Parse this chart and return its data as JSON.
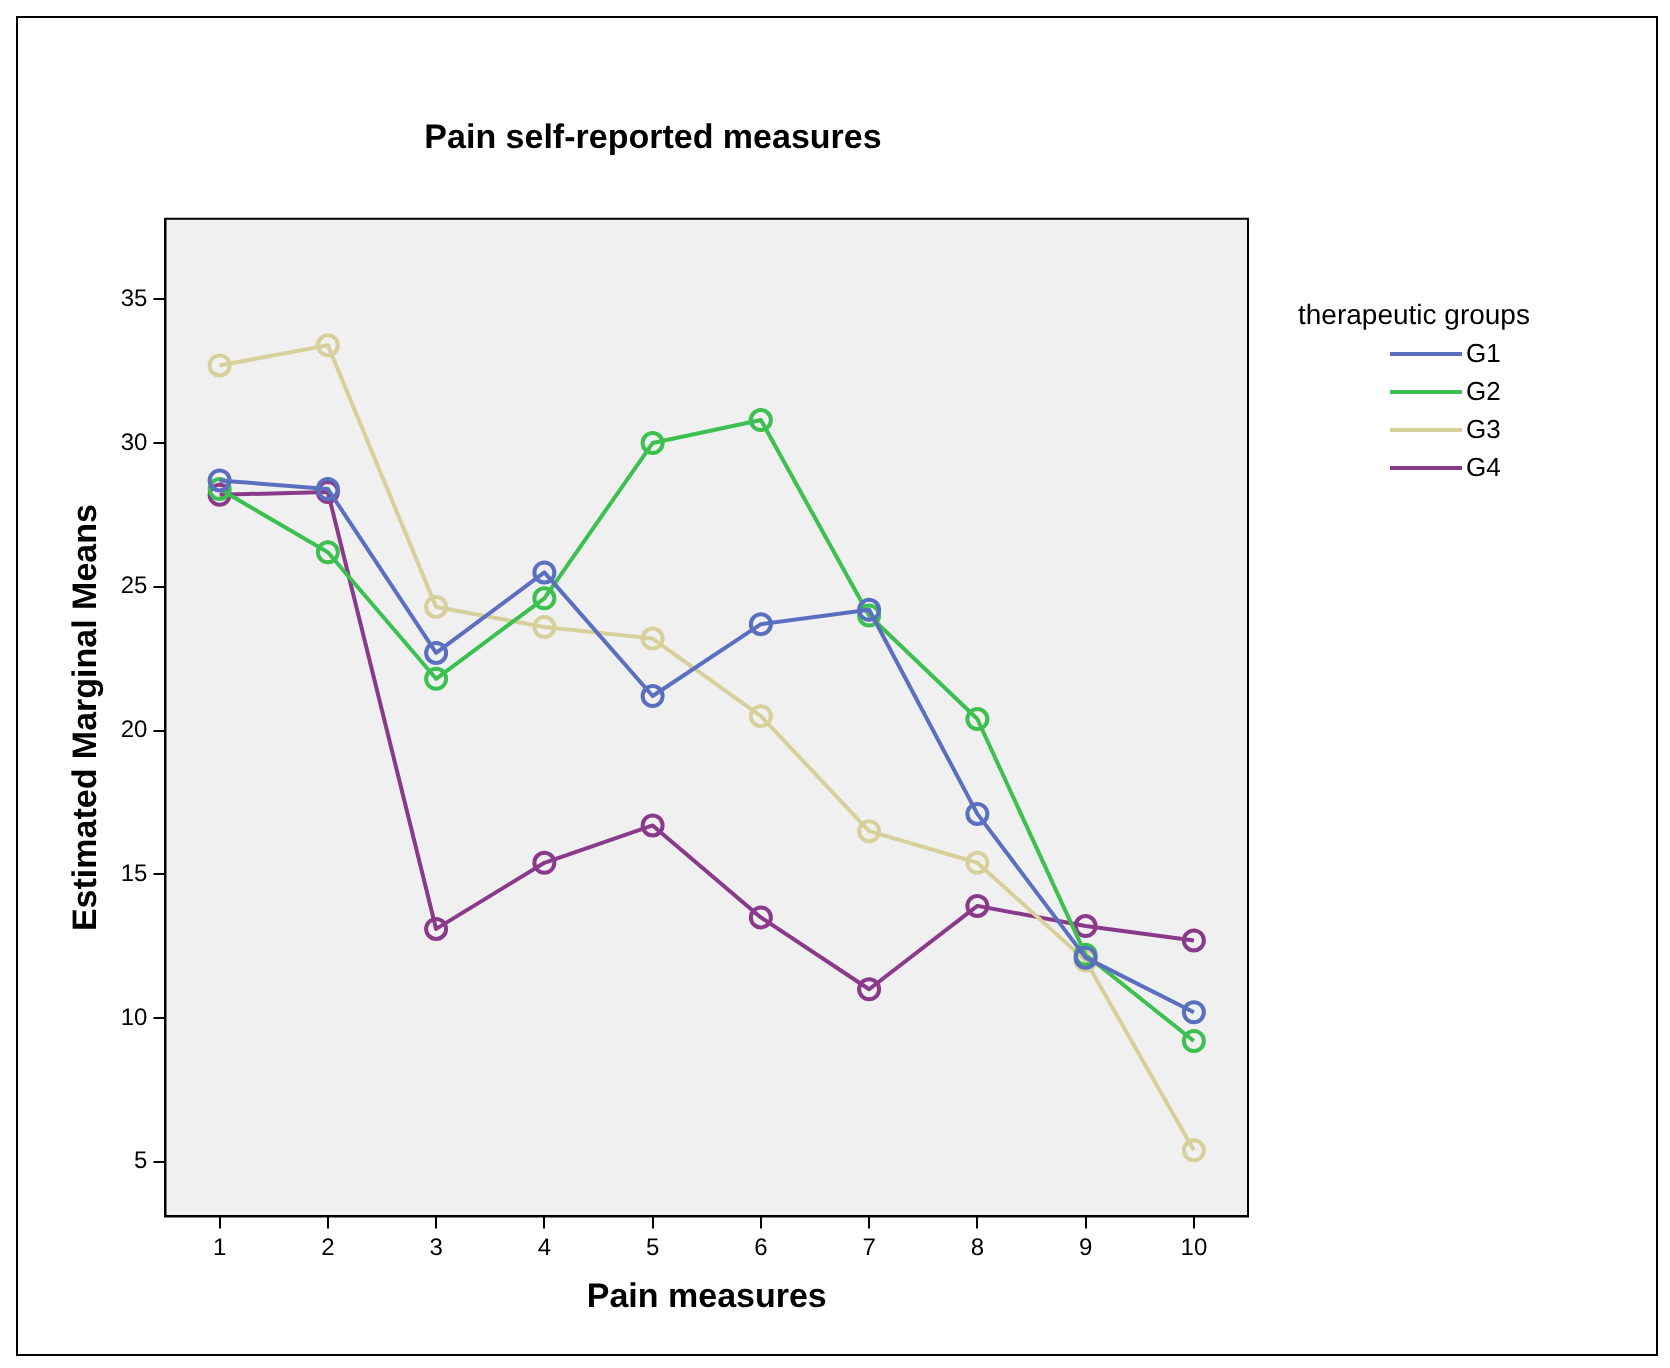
{
  "chart_data": {
    "type": "line",
    "title": "Pain self-reported measures",
    "xlabel": "Pain measures",
    "ylabel": "Estimated Marginal Means",
    "legend_title": "therapeutic groups",
    "categories": [
      "1",
      "2",
      "3",
      "4",
      "5",
      "6",
      "7",
      "8",
      "9",
      "10"
    ],
    "series": [
      {
        "name": "G1",
        "color": "#5a6fc0",
        "values": [
          28.7,
          28.4,
          22.7,
          25.5,
          21.2,
          23.7,
          24.2,
          17.1,
          12.1,
          10.2
        ]
      },
      {
        "name": "G2",
        "color": "#3cc050",
        "values": [
          28.4,
          26.2,
          21.8,
          24.6,
          30.0,
          30.8,
          24.0,
          20.4,
          12.2,
          9.2
        ]
      },
      {
        "name": "G3",
        "color": "#d8d09a",
        "values": [
          32.7,
          33.4,
          24.3,
          23.6,
          23.2,
          20.5,
          16.5,
          15.4,
          12.0,
          5.4
        ]
      },
      {
        "name": "G4",
        "color": "#8a3a8a",
        "values": [
          28.2,
          28.3,
          13.1,
          15.4,
          16.7,
          13.5,
          11.0,
          13.9,
          13.2,
          12.7
        ]
      }
    ],
    "ylim": [
      3.1,
      37.8
    ],
    "yticks": [
      5,
      10,
      15,
      20,
      25,
      30,
      35
    ],
    "grid": false,
    "legend": "top right",
    "marker": "circle",
    "line_style": "solid"
  }
}
